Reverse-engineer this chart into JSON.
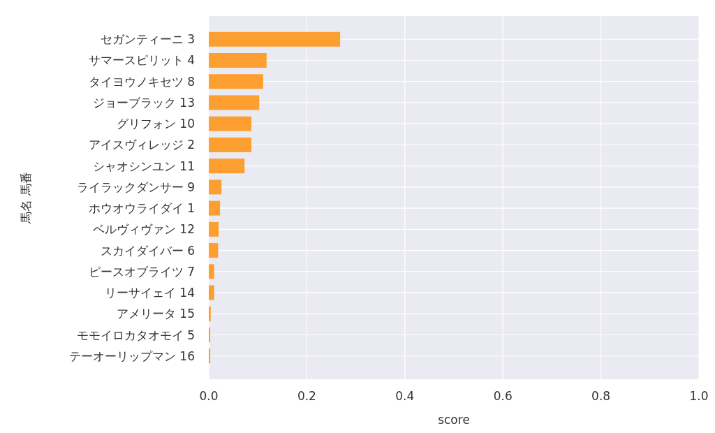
{
  "chart_data": {
    "type": "bar",
    "orientation": "horizontal",
    "xlabel": "score",
    "ylabel": "馬名 馬番",
    "categories": [
      "セガンティーニ 3",
      "サマースピリット 4",
      "タイヨウノキセツ 8",
      "ジョーブラック 13",
      "グリフォン 10",
      "アイスヴィレッジ 2",
      "シャオシンユン 11",
      "ライラックダンサー 9",
      "ホウオウライダイ 1",
      "ベルヴィヴァン 12",
      "スカイダイバー 6",
      "ピースオブライツ 7",
      "リーサイェイ 14",
      "アメリータ 15",
      "モモイロカタオモイ 5",
      "テーオーリップマン 16"
    ],
    "values": [
      0.268,
      0.118,
      0.111,
      0.103,
      0.087,
      0.087,
      0.073,
      0.026,
      0.023,
      0.02,
      0.019,
      0.011,
      0.011,
      0.004,
      0.003,
      0.003
    ],
    "color": "#fd9f30",
    "xlim": [
      0,
      1
    ],
    "xticks": [
      {
        "value": 0,
        "label": "0.0"
      },
      {
        "value": 0.2,
        "label": "0.2"
      },
      {
        "value": 0.4,
        "label": "0.4"
      },
      {
        "value": 0.6,
        "label": "0.6"
      },
      {
        "value": 0.8,
        "label": "0.8"
      },
      {
        "value": 1,
        "label": "1.0"
      }
    ],
    "grid": true
  }
}
